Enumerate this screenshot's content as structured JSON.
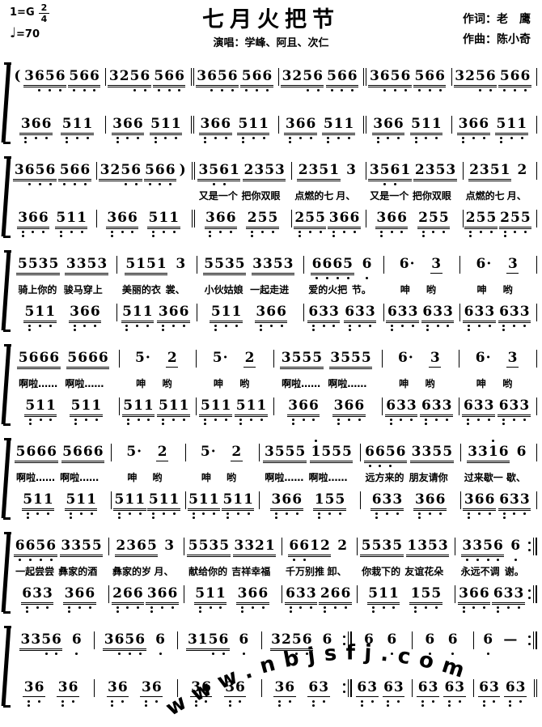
{
  "header": {
    "key": "1=G",
    "meter_numerator": "2",
    "meter_denominator": "4",
    "tempo_note": "♩",
    "tempo": "=70",
    "title": "七月火把节",
    "performers": "演唱：学峰、阿且、次仁",
    "lyricist": "作词：老　鹰",
    "composer": "作曲：陈小奇"
  },
  "watermark": "www.nbjsfj.com",
  "systems": [
    {
      "melody": [
        {
          "groups": [
            "(",
            "=36,5,6,",
            "=5,6,6,"
          ],
          "bar": "|"
        },
        {
          "groups": [
            "=325,6,",
            "=5,6,6,"
          ],
          "bar": "||"
        },
        {
          "groups": [
            "=36,5,6,",
            "=5,6,6,"
          ],
          "bar": "|"
        },
        {
          "groups": [
            "=325,6,",
            "=5,6,6,"
          ],
          "bar": "||"
        },
        {
          "groups": [
            "=36,5,6,",
            "=5,6,6,"
          ],
          "bar": "|"
        },
        {
          "groups": [
            "=325,6,",
            "=5,6,6,"
          ],
          "bar": "|"
        }
      ],
      "lyrics": [
        [],
        [],
        [],
        [],
        [],
        []
      ],
      "bass": [
        {
          "groups": [
            "=3,,6,6,",
            "=5,,1,1,"
          ],
          "bar": "|"
        },
        {
          "groups": [
            "=3,,6,6,",
            "=5,,1,1,"
          ],
          "bar": "||"
        },
        {
          "groups": [
            "=3,,6,6,",
            "=5,,1,1,"
          ],
          "bar": "|"
        },
        {
          "groups": [
            "=3,,6,6,",
            "=5,,1,1,"
          ],
          "bar": "||"
        },
        {
          "groups": [
            "=3,,6,6,",
            "=5,,1,1,"
          ],
          "bar": "|"
        },
        {
          "groups": [
            "=3,,6,6,",
            "=5,,1,1,"
          ],
          "bar": "|"
        }
      ]
    },
    {
      "melody": [
        {
          "groups": [
            "=36,5,6,",
            "=5,6,6,"
          ],
          "bar": "|"
        },
        {
          "groups": [
            "=325,6,",
            "=5,6,6,",
            ")"
          ],
          "bar": "||"
        },
        {
          "groups": [
            "=35,6,1",
            "=2353"
          ],
          "bar": "|"
        },
        {
          "groups": [
            "=2351",
            "3"
          ],
          "bar": "|"
        },
        {
          "groups": [
            "=35,6,1",
            "=2353"
          ],
          "bar": "|"
        },
        {
          "groups": [
            "=2351",
            "2"
          ],
          "bar": "|"
        }
      ],
      "lyrics": [
        [],
        [],
        [
          "又是一个",
          "把你双眼"
        ],
        [
          "点燃的七",
          "月、"
        ],
        [
          "又是一个",
          "把你双眼"
        ],
        [
          "点燃的七",
          "月、"
        ]
      ],
      "bass": [
        {
          "groups": [
            "=3,,6,6,",
            "=5,,1,1,"
          ],
          "bar": "|"
        },
        {
          "groups": [
            "=3,,6,6,",
            "=5,,1,1,"
          ],
          "bar": "||"
        },
        {
          "groups": [
            "=3,,6,6,",
            "=2,,5,5,"
          ],
          "bar": "|"
        },
        {
          "groups": [
            "=2,,5,5,",
            "=3,,6,6,"
          ],
          "bar": "|"
        },
        {
          "groups": [
            "=3,,6,6,",
            "=2,,5,5,"
          ],
          "bar": "|"
        },
        {
          "groups": [
            "=2,,5,5,",
            "=2,,5,5,"
          ],
          "bar": "|"
        }
      ]
    },
    {
      "melody": [
        {
          "groups": [
            "=5535",
            "=3353"
          ],
          "bar": "|"
        },
        {
          "groups": [
            "=5151",
            "3"
          ],
          "bar": "|"
        },
        {
          "groups": [
            "=5535",
            "=3353"
          ],
          "bar": "|"
        },
        {
          "groups": [
            "=6,6,6,5,",
            "6,"
          ],
          "bar": "|"
        },
        {
          "groups": [
            "6·",
            "-3"
          ],
          "bar": "|"
        },
        {
          "groups": [
            "6·",
            "-3"
          ],
          "bar": "|"
        }
      ],
      "lyrics": [
        [
          "骑上你的",
          "骏马穿上"
        ],
        [
          "美丽的衣",
          "裳、"
        ],
        [
          "小伙姑娘",
          "一起走进"
        ],
        [
          "爱的火把",
          "节。"
        ],
        [
          "呻",
          "哟"
        ],
        [
          "呻",
          "哟"
        ]
      ],
      "bass": [
        {
          "groups": [
            "=5,,1,1,",
            "=3,,6,6,"
          ],
          "bar": "|"
        },
        {
          "groups": [
            "=5,,1,1,",
            "=3,,6,6,"
          ],
          "bar": "|"
        },
        {
          "groups": [
            "=5,,1,1,",
            "=3,,6,6,"
          ],
          "bar": "|"
        },
        {
          "groups": [
            "=6,,3,3,",
            "=6,,3,3,"
          ],
          "bar": "|"
        },
        {
          "groups": [
            "=6,,3,3,",
            "=6,,3,3,"
          ],
          "bar": "|"
        },
        {
          "groups": [
            "=6,,3,3,",
            "=6,,3,3,"
          ],
          "bar": "|"
        }
      ]
    },
    {
      "melody": [
        {
          "groups": [
            "=5666",
            "=5666"
          ],
          "bar": "|"
        },
        {
          "groups": [
            "5·",
            "-2"
          ],
          "bar": "|"
        },
        {
          "groups": [
            "5·",
            "-2"
          ],
          "bar": "|"
        },
        {
          "groups": [
            "=3555",
            "=3555"
          ],
          "bar": "|"
        },
        {
          "groups": [
            "6·",
            "-3"
          ],
          "bar": "|"
        },
        {
          "groups": [
            "6·",
            "-3"
          ],
          "bar": "|"
        }
      ],
      "lyrics": [
        [
          "啊啦……",
          "啊啦……"
        ],
        [
          "呻",
          "哟"
        ],
        [
          "呻",
          "哟"
        ],
        [
          "啊啦……",
          "啊啦……"
        ],
        [
          "呻",
          "哟"
        ],
        [
          "呻",
          "哟"
        ]
      ],
      "bass": [
        {
          "groups": [
            "=5,,1,1,",
            "=5,,1,1,"
          ],
          "bar": "|"
        },
        {
          "groups": [
            "=5,,1,1,",
            "=5,,1,1,"
          ],
          "bar": "|"
        },
        {
          "groups": [
            "=5,,1,1,",
            "=5,,1,1,"
          ],
          "bar": "|"
        },
        {
          "groups": [
            "=3,,6,6,",
            "=3,,6,6,"
          ],
          "bar": "|"
        },
        {
          "groups": [
            "=6,,3,3,",
            "=6,,3,3,"
          ],
          "bar": "|"
        },
        {
          "groups": [
            "=6,,3,3,",
            "=6,,3,3,"
          ],
          "bar": "|"
        }
      ]
    },
    {
      "melody": [
        {
          "groups": [
            "=5666",
            "=5666"
          ],
          "bar": "|"
        },
        {
          "groups": [
            "5·",
            "-2"
          ],
          "bar": "|"
        },
        {
          "groups": [
            "5·",
            "-2"
          ],
          "bar": "|"
        },
        {
          "groups": [
            "=3555",
            "=1'555"
          ],
          "bar": "|"
        },
        {
          "groups": [
            "=6,6,5,6",
            "=3355"
          ],
          "bar": "|"
        },
        {
          "groups": [
            "=331'6",
            "6"
          ],
          "bar": "|"
        }
      ],
      "lyrics": [
        [
          "啊啦……",
          "啊啦……"
        ],
        [
          "呻",
          "哟"
        ],
        [
          "呻",
          "哟"
        ],
        [
          "啊啦……",
          "啊啦……"
        ],
        [
          "远方来的",
          "朋友请你"
        ],
        [
          "过来歇一",
          "歇、"
        ]
      ],
      "bass": [
        {
          "groups": [
            "=5,,1,1,",
            "=5,,1,1,"
          ],
          "bar": "|"
        },
        {
          "groups": [
            "=5,,1,1,",
            "=5,,1,1,"
          ],
          "bar": "|"
        },
        {
          "groups": [
            "=5,,1,1,",
            "=5,,1,1,"
          ],
          "bar": "|"
        },
        {
          "groups": [
            "=3,,6,6,",
            "=1,,5,5,"
          ],
          "bar": "|"
        },
        {
          "groups": [
            "=6,,3,3,",
            "=3,,6,6,"
          ],
          "bar": "|"
        },
        {
          "groups": [
            "=3,,6,6,",
            "=6,,3,3,"
          ],
          "bar": "|"
        }
      ]
    },
    {
      "melody": [
        {
          "groups": [
            "=6,6,5,6,",
            "=3355"
          ],
          "bar": "|"
        },
        {
          "groups": [
            "=2365",
            "3"
          ],
          "bar": "|"
        },
        {
          "groups": [
            "=5535",
            "=3321"
          ],
          "bar": "|"
        },
        {
          "groups": [
            "=6,6,12",
            "2"
          ],
          "bar": "|"
        },
        {
          "groups": [
            "=5535",
            "=1353"
          ],
          "bar": "|"
        },
        {
          "groups": [
            "=3,3,5,6,",
            "6,"
          ],
          "bar": ":||"
        }
      ],
      "lyrics": [
        [
          "一起尝尝",
          "彝家的酒"
        ],
        [
          "彝家的岁",
          "月、"
        ],
        [
          "献给你的",
          "吉祥幸福"
        ],
        [
          "千万别推",
          "卸、"
        ],
        [
          "你栽下的",
          "友谊花朵"
        ],
        [
          "永远不调",
          "谢。"
        ]
      ],
      "bass": [
        {
          "groups": [
            "=6,,3,3,",
            "=3,,6,6,"
          ],
          "bar": "|"
        },
        {
          "groups": [
            "=2,,6,6,",
            "=3,,6,6,"
          ],
          "bar": "|"
        },
        {
          "groups": [
            "=5,,1,1,",
            "=3,,6,6,"
          ],
          "bar": "|"
        },
        {
          "groups": [
            "=6,,3,3,",
            "=2,,6,6,"
          ],
          "bar": "|"
        },
        {
          "groups": [
            "=5,,1,1,",
            "=1,,5,5,"
          ],
          "bar": "|"
        },
        {
          "groups": [
            "=3,,6,6,",
            "=6,,3,3,"
          ],
          "bar": ":||"
        }
      ]
    },
    {
      "melody": [
        {
          "groups": [
            "=335,6,",
            "6,"
          ],
          "bar": "|"
        },
        {
          "groups": [
            "=36,5,6,",
            "6,"
          ],
          "bar": "|"
        },
        {
          "groups": [
            "=315,6,",
            "6,"
          ],
          "bar": "|"
        },
        {
          "groups": [
            "=325,6,",
            "6,"
          ],
          "bar": ":||"
        },
        {
          "groups": [
            "6,",
            "6,"
          ],
          "bar": "|"
        },
        {
          "groups": [
            "6,",
            "6,"
          ],
          "bar": "|"
        },
        {
          "groups": [
            "6,",
            "—"
          ],
          "bar": ":||"
        }
      ],
      "lyrics": [
        [],
        [],
        [],
        [],
        [],
        [],
        []
      ],
      "bass": [
        {
          "groups": [
            "-3,,6,",
            "-3,,6,"
          ],
          "bar": "|"
        },
        {
          "groups": [
            "-3,,6,",
            "-3,,6,"
          ],
          "bar": "|"
        },
        {
          "groups": [
            "-3,,6,",
            "-3,,6,"
          ],
          "bar": "|"
        },
        {
          "groups": [
            "-3,,6,",
            "-6,,3,"
          ],
          "bar": ":||"
        },
        {
          "groups": [
            "-6,,3,",
            "-6,,3,"
          ],
          "bar": "|"
        },
        {
          "groups": [
            "-6,,3,",
            "-6,,3,"
          ],
          "bar": "|"
        },
        {
          "groups": [
            "-6,,3,",
            "-6,,3,"
          ],
          "bar": "||"
        }
      ]
    }
  ]
}
